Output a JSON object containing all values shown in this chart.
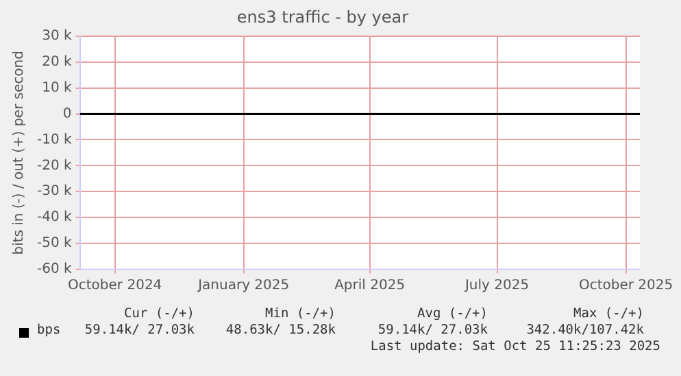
{
  "chart_data": {
    "type": "line",
    "title": "ens3 traffic - by year",
    "ylabel": "bits in (-) / out (+) per second",
    "x": [
      "2024-09-20",
      "2025-10-25"
    ],
    "series": [
      {
        "name": "bps",
        "color": "#000000",
        "values": [
          0,
          0
        ]
      }
    ],
    "xlim": [
      "2024-09-20",
      "2025-10-25"
    ],
    "xticks": [
      {
        "value": "2024-10-15",
        "label": "October 2024"
      },
      {
        "value": "2025-01-15",
        "label": "January 2025"
      },
      {
        "value": "2025-04-15",
        "label": "April 2025"
      },
      {
        "value": "2025-07-15",
        "label": "July 2025"
      },
      {
        "value": "2025-10-15",
        "label": "October 2025"
      }
    ],
    "ylim": [
      -60000,
      30000
    ],
    "yticks": [
      {
        "value": 30000,
        "label": "30 k"
      },
      {
        "value": 20000,
        "label": "20 k"
      },
      {
        "value": 10000,
        "label": "10 k"
      },
      0,
      {
        "value": -10000,
        "label": "-10 k"
      },
      {
        "value": -20000,
        "label": "-20 k"
      },
      {
        "value": -30000,
        "label": "-30 k"
      },
      {
        "value": -40000,
        "label": "-40 k"
      },
      {
        "value": -50000,
        "label": "-50 k"
      },
      {
        "value": -60000,
        "label": "-60 k"
      }
    ],
    "grid": true,
    "legend": "bottom left",
    "annotations": [
      "Cur (-/+)",
      "Min (-/+)",
      "Avg (-/+)",
      "Max (-/+)",
      "59.14k/ 27.03k",
      "48.63k/ 15.28k",
      "59.14k/ 27.03k",
      "342.40k/107.42k",
      "Last update: Sat Oct 25 11:25:23 2025"
    ]
  }
}
